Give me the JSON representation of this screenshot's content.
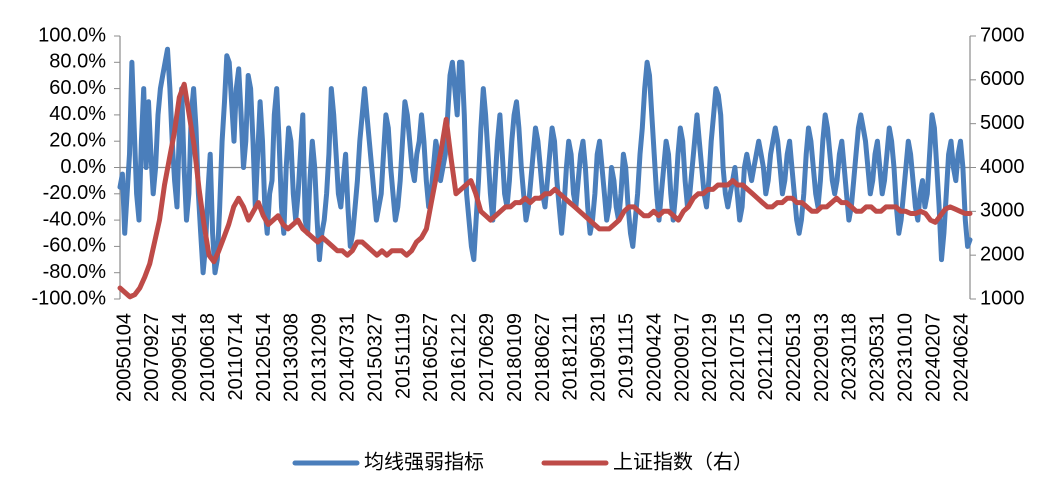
{
  "chart_data": {
    "type": "line",
    "title": "",
    "legend_position": "bottom",
    "grid": false,
    "x_tick_labels": [
      "20050104",
      "20070927",
      "20090514",
      "20100618",
      "20110714",
      "20120514",
      "20130308",
      "20131209",
      "20140731",
      "20150327",
      "20151119",
      "20160527",
      "20161212",
      "20170629",
      "20180109",
      "20180627",
      "20181211",
      "20190531",
      "20191115",
      "20200424",
      "20200917",
      "20210219",
      "20210715",
      "20211210",
      "20220513",
      "20220913",
      "20230118",
      "20230531",
      "20231010",
      "20240207",
      "20240624"
    ],
    "y_left": {
      "range": [
        -100,
        100
      ],
      "ticks": [
        "100.0%",
        "80.0%",
        "60.0%",
        "40.0%",
        "20.0%",
        "0.0%",
        "-20.0%",
        "-40.0%",
        "-60.0%",
        "-80.0%",
        "-100.0%"
      ]
    },
    "y_right": {
      "label": "",
      "range": [
        1000,
        7000
      ],
      "ticks": [
        "7000",
        "6000",
        "5000",
        "4000",
        "3000",
        "2000",
        "1000"
      ]
    },
    "series": [
      {
        "name": "均线强弱指标",
        "axis": "left",
        "color": "#4a7ebb",
        "values": [
          -15,
          -5,
          -50,
          -20,
          10,
          80,
          30,
          -20,
          -40,
          20,
          60,
          0,
          50,
          10,
          -20,
          0,
          40,
          60,
          70,
          80,
          90,
          60,
          20,
          -10,
          -30,
          30,
          60,
          0,
          -40,
          -20,
          40,
          60,
          30,
          -20,
          -50,
          -80,
          -60,
          -20,
          10,
          -50,
          -80,
          -70,
          -30,
          20,
          50,
          85,
          80,
          50,
          20,
          60,
          75,
          40,
          0,
          20,
          70,
          60,
          20,
          -30,
          10,
          50,
          20,
          -30,
          -50,
          -20,
          -10,
          40,
          60,
          20,
          -30,
          -50,
          0,
          30,
          20,
          -20,
          -40,
          -20,
          10,
          40,
          -40,
          -50,
          -10,
          20,
          0,
          -40,
          -70,
          -50,
          -40,
          -20,
          10,
          60,
          40,
          10,
          -20,
          -30,
          -10,
          10,
          -30,
          -60,
          -50,
          -30,
          -10,
          20,
          40,
          60,
          40,
          20,
          0,
          -20,
          -40,
          -30,
          -20,
          10,
          40,
          30,
          0,
          -20,
          -40,
          -30,
          -10,
          20,
          50,
          40,
          20,
          0,
          -10,
          10,
          20,
          40,
          20,
          -10,
          -30,
          -20,
          0,
          20,
          10,
          -10,
          0,
          10,
          40,
          70,
          80,
          60,
          40,
          80,
          80,
          40,
          -20,
          -40,
          -60,
          -70,
          -40,
          -10,
          30,
          60,
          40,
          10,
          -20,
          -40,
          -10,
          20,
          40,
          10,
          -20,
          -30,
          -10,
          20,
          40,
          50,
          30,
          0,
          -20,
          -40,
          -30,
          -10,
          10,
          30,
          20,
          0,
          -20,
          -30,
          -10,
          10,
          30,
          20,
          -10,
          -30,
          -50,
          -30,
          0,
          20,
          10,
          -20,
          -30,
          -10,
          10,
          20,
          0,
          -30,
          -50,
          -40,
          -20,
          10,
          20,
          0,
          -20,
          -40,
          -30,
          0,
          -10,
          -30,
          -40,
          -20,
          10,
          0,
          -30,
          -50,
          -60,
          -40,
          -20,
          10,
          30,
          60,
          80,
          70,
          40,
          10,
          -20,
          -40,
          -20,
          0,
          20,
          10,
          -20,
          -40,
          -20,
          10,
          30,
          20,
          -10,
          -30,
          -20,
          0,
          20,
          40,
          20,
          0,
          -20,
          -30,
          -10,
          20,
          40,
          60,
          55,
          40,
          0,
          -20,
          -30,
          -20,
          -10,
          0,
          -20,
          -40,
          -30,
          0,
          10,
          0,
          -10,
          0,
          10,
          20,
          10,
          0,
          -20,
          -10,
          10,
          20,
          30,
          20,
          0,
          -20,
          -10,
          10,
          20,
          0,
          -20,
          -40,
          -50,
          -40,
          -20,
          10,
          30,
          20,
          0,
          -20,
          -30,
          -10,
          20,
          40,
          30,
          10,
          -10,
          -20,
          -10,
          10,
          20,
          0,
          -20,
          -40,
          -30,
          -10,
          10,
          30,
          40,
          30,
          20,
          0,
          -20,
          -10,
          10,
          20,
          0,
          -20,
          -10,
          10,
          30,
          20,
          0,
          -30,
          -50,
          -40,
          -20,
          0,
          20,
          10,
          -10,
          -30,
          -40,
          -20,
          -10,
          -30,
          -20,
          10,
          40,
          30,
          0,
          -30,
          -70,
          -50,
          -20,
          10,
          20,
          0,
          -10,
          10,
          20,
          0,
          -40,
          -60,
          -55
        ],
        "left_axis_note": ""
      },
      {
        "name": "上证指数（右）",
        "axis": "right",
        "color": "#be4b48",
        "values": [
          1250,
          1150,
          1050,
          1100,
          1250,
          1500,
          1800,
          2300,
          2800,
          3600,
          4200,
          4800,
          5600,
          5900,
          5200,
          4500,
          3500,
          2700,
          2000,
          1850,
          2100,
          2400,
          2700,
          3100,
          3300,
          3100,
          2800,
          3000,
          3200,
          2900,
          2700,
          2800,
          2900,
          2700,
          2600,
          2700,
          2800,
          2600,
          2500,
          2400,
          2300,
          2400,
          2300,
          2200,
          2100,
          2100,
          2000,
          2100,
          2300,
          2300,
          2200,
          2100,
          2000,
          2100,
          2000,
          2100,
          2100,
          2100,
          2000,
          2100,
          2300,
          2400,
          2600,
          3200,
          3800,
          4400,
          5100,
          4200,
          3400,
          3500,
          3600,
          3700,
          3400,
          3000,
          2900,
          2800,
          2900,
          3000,
          3100,
          3100,
          3200,
          3200,
          3300,
          3200,
          3300,
          3300,
          3400,
          3400,
          3500,
          3400,
          3300,
          3200,
          3100,
          3000,
          2900,
          2800,
          2700,
          2600,
          2600,
          2600,
          2700,
          2800,
          3000,
          3100,
          3100,
          3000,
          2900,
          2900,
          3000,
          2900,
          3000,
          3000,
          2900,
          2800,
          3000,
          3100,
          3300,
          3400,
          3400,
          3500,
          3500,
          3600,
          3600,
          3600,
          3700,
          3600,
          3600,
          3500,
          3400,
          3300,
          3200,
          3100,
          3100,
          3200,
          3200,
          3300,
          3300,
          3200,
          3200,
          3100,
          3000,
          3000,
          3100,
          3100,
          3200,
          3300,
          3200,
          3200,
          3100,
          3000,
          3000,
          3100,
          3100,
          3000,
          3000,
          3100,
          3100,
          3100,
          3000,
          3000,
          2950,
          2950,
          3000,
          2950,
          2800,
          2750,
          2900,
          3050,
          3100,
          3050,
          3000,
          2950,
          2950
        ]
      }
    ]
  }
}
